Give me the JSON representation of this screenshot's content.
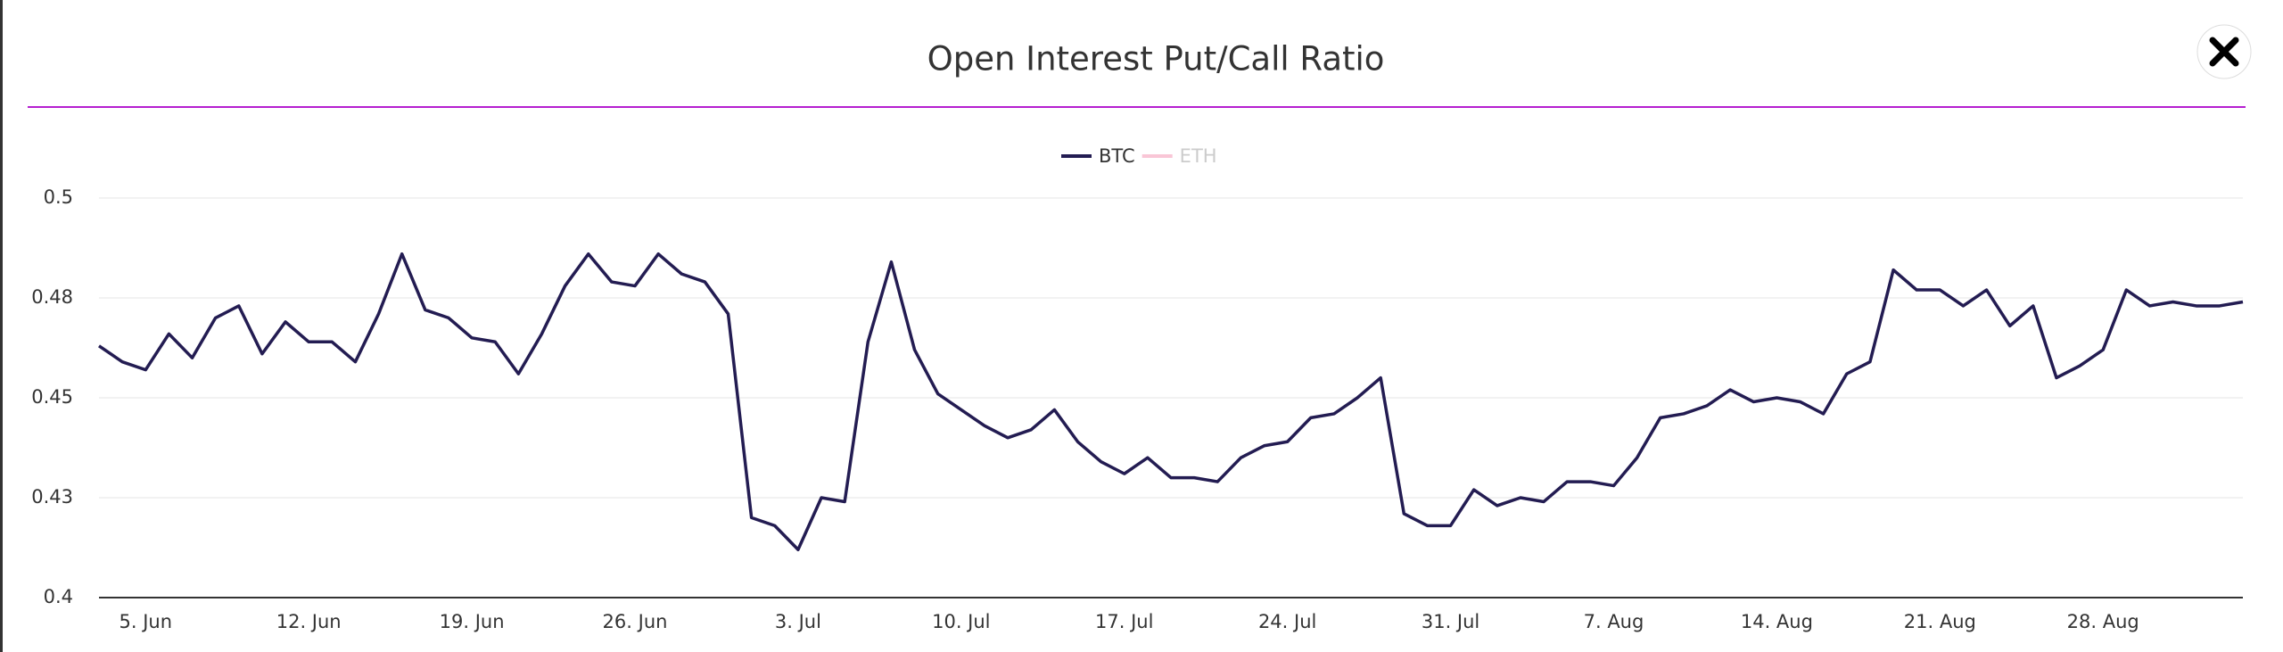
{
  "chart_data": {
    "type": "line",
    "title": "Open Interest Put/Call Ratio",
    "categories": [
      null,
      null,
      "5. Jun",
      null,
      null,
      null,
      null,
      null,
      null,
      "12. Jun",
      null,
      null,
      null,
      null,
      null,
      null,
      "19. Jun",
      null,
      null,
      null,
      null,
      null,
      null,
      "26. Jun",
      null,
      null,
      null,
      null,
      null,
      null,
      "3. Jul",
      null,
      null,
      null,
      null,
      null,
      null,
      "10. Jul",
      null,
      null,
      null,
      null,
      null,
      null,
      "17. Jul",
      null,
      null,
      null,
      null,
      null,
      null,
      "24. Jul",
      null,
      null,
      null,
      null,
      null,
      null,
      "31. Jul",
      null,
      null,
      null,
      null,
      null,
      null,
      "7. Aug",
      null,
      null,
      null,
      null,
      null,
      null,
      "14. Aug",
      null,
      null,
      null,
      null,
      null,
      null,
      "21. Aug",
      null,
      null,
      null,
      null,
      null,
      null,
      "28. Aug",
      null,
      null,
      null,
      null,
      null,
      null
    ],
    "series": [
      {
        "name": "BTC",
        "color": "#231c52",
        "values": [
          0.463,
          0.459,
          0.457,
          0.466,
          0.46,
          0.47,
          0.473,
          0.461,
          0.469,
          0.464,
          0.464,
          0.459,
          0.471,
          0.486,
          0.472,
          0.47,
          0.465,
          0.464,
          0.456,
          0.466,
          0.478,
          0.486,
          0.479,
          0.478,
          0.486,
          0.481,
          0.479,
          0.471,
          0.42,
          0.418,
          0.412,
          0.425,
          0.424,
          0.464,
          0.484,
          0.462,
          0.451,
          0.447,
          0.443,
          0.44,
          0.442,
          0.447,
          0.439,
          0.434,
          0.431,
          0.435,
          0.43,
          0.43,
          0.429,
          0.435,
          0.438,
          0.439,
          0.445,
          0.446,
          0.45,
          0.455,
          0.421,
          0.418,
          0.418,
          0.427,
          0.423,
          0.425,
          0.424,
          0.429,
          0.429,
          0.428,
          0.435,
          0.445,
          0.446,
          0.448,
          0.452,
          0.449,
          0.45,
          0.449,
          0.446,
          0.456,
          0.459,
          0.482,
          0.477,
          0.477,
          0.473,
          0.477,
          0.468,
          0.473,
          0.455,
          0.458,
          0.462,
          0.477,
          0.473,
          0.474,
          0.473,
          0.473,
          0.474
        ]
      },
      {
        "name": "ETH",
        "color": "#f9c6d6",
        "visible": false
      }
    ],
    "ylim": [
      0.4,
      0.5
    ],
    "yticks": [
      0.4,
      {
        "value": 0.425,
        "label": "0.43"
      },
      0.45,
      {
        "value": 0.475,
        "label": "0.48"
      },
      0.5
    ],
    "grid": true
  }
}
